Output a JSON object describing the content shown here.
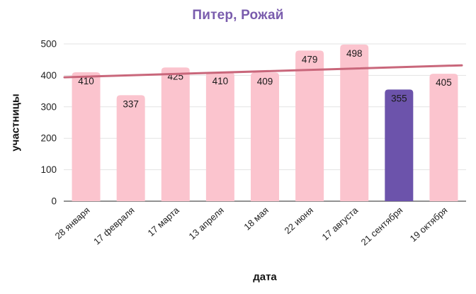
{
  "chart_data": {
    "type": "bar",
    "title": "Питер, Рожай",
    "xlabel": "дата",
    "ylabel": "участницы",
    "categories": [
      "28 января",
      "17 февраля",
      "17 марта",
      "13 апреля",
      "18 мая",
      "22 июня",
      "17 августа",
      "21 сентября",
      "19 октября"
    ],
    "values": [
      410,
      337,
      425,
      410,
      409,
      479,
      498,
      355,
      405
    ],
    "highlight_index": 7,
    "ylim": [
      0,
      500
    ],
    "yticks": [
      0,
      100,
      200,
      300,
      400,
      500
    ],
    "grid": true,
    "legend": "none",
    "trendline": {
      "start": 394,
      "end": 432
    },
    "colors": {
      "bar": "#fbc4ce",
      "highlight_bar": "#6c53ab",
      "trendline": "#c9677b",
      "title": "#7a5cad",
      "gridline": "#e3e3e3",
      "axis_line": "#6e6e6e",
      "tick_label": "#1f1f1f",
      "value_label": "#1a1a1a",
      "background": "#ffffff"
    }
  }
}
